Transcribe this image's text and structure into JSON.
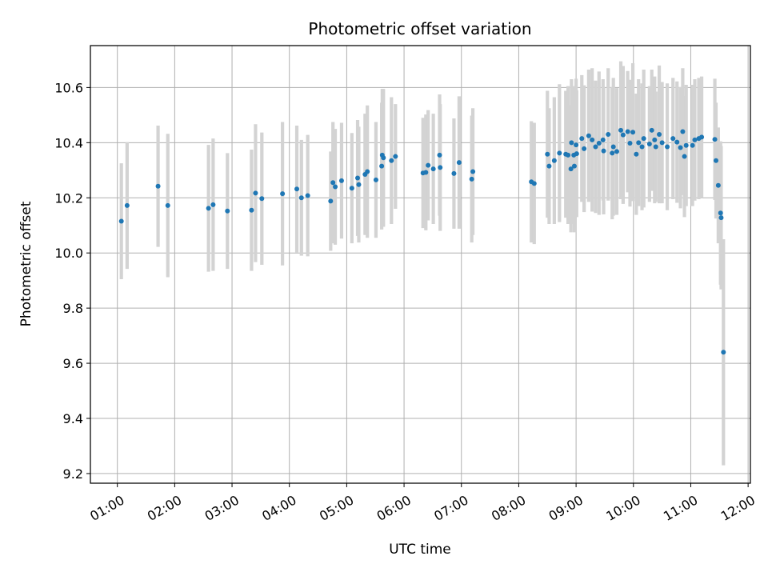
{
  "chart_data": {
    "type": "scatter",
    "title": "Photometric offset variation",
    "xlabel": "UTC time",
    "ylabel": "Photometric offset",
    "x_unit": "hours UTC",
    "xlim": [
      0.53,
      12.04
    ],
    "ylim": [
      9.165,
      10.752
    ],
    "grid": true,
    "x_ticks": [
      {
        "value": 1,
        "label": "01:00"
      },
      {
        "value": 2,
        "label": "02:00"
      },
      {
        "value": 3,
        "label": "03:00"
      },
      {
        "value": 4,
        "label": "04:00"
      },
      {
        "value": 5,
        "label": "05:00"
      },
      {
        "value": 6,
        "label": "06:00"
      },
      {
        "value": 7,
        "label": "07:00"
      },
      {
        "value": 8,
        "label": "08:00"
      },
      {
        "value": 9,
        "label": "09:00"
      },
      {
        "value": 10,
        "label": "10:00"
      },
      {
        "value": 11,
        "label": "11:00"
      },
      {
        "value": 12,
        "label": "12:00"
      }
    ],
    "y_ticks": [
      {
        "value": 9.2,
        "label": "9.2"
      },
      {
        "value": 9.4,
        "label": "9.4"
      },
      {
        "value": 9.6,
        "label": "9.6"
      },
      {
        "value": 9.8,
        "label": "9.8"
      },
      {
        "value": 10.0,
        "label": "10.0"
      },
      {
        "value": 10.2,
        "label": "10.2"
      },
      {
        "value": 10.4,
        "label": "10.4"
      },
      {
        "value": 10.6,
        "label": "10.6"
      }
    ],
    "colors": {
      "point": "#1f77b4",
      "errorbar": "#d3d3d3",
      "grid": "#b0b0b0",
      "axis": "#000000"
    },
    "series": [
      {
        "name": "offset",
        "points": [
          [
            1.07,
            10.115,
            0.21
          ],
          [
            1.17,
            10.172,
            0.23
          ],
          [
            1.71,
            10.242,
            0.22
          ],
          [
            1.88,
            10.172,
            0.26
          ],
          [
            2.59,
            10.162,
            0.23
          ],
          [
            2.67,
            10.175,
            0.24
          ],
          [
            2.92,
            10.152,
            0.21
          ],
          [
            3.34,
            10.155,
            0.22
          ],
          [
            3.41,
            10.217,
            0.25
          ],
          [
            3.52,
            10.197,
            0.24
          ],
          [
            3.88,
            10.215,
            0.26
          ],
          [
            4.13,
            10.232,
            0.23
          ],
          [
            4.21,
            10.2,
            0.21
          ],
          [
            4.32,
            10.208,
            0.22
          ],
          [
            4.72,
            10.188,
            0.18
          ],
          [
            4.76,
            10.255,
            0.22
          ],
          [
            4.8,
            10.24,
            0.21
          ],
          [
            4.91,
            10.262,
            0.21
          ],
          [
            5.09,
            10.235,
            0.2
          ],
          [
            5.19,
            10.272,
            0.21
          ],
          [
            5.21,
            10.248,
            0.21
          ],
          [
            5.32,
            10.285,
            0.22
          ],
          [
            5.36,
            10.295,
            0.24
          ],
          [
            5.51,
            10.265,
            0.21
          ],
          [
            5.61,
            10.315,
            0.23
          ],
          [
            5.62,
            10.355,
            0.24
          ],
          [
            5.64,
            10.345,
            0.25
          ],
          [
            5.78,
            10.335,
            0.23
          ],
          [
            5.85,
            10.35,
            0.19
          ],
          [
            6.33,
            10.29,
            0.2
          ],
          [
            6.38,
            10.292,
            0.21
          ],
          [
            6.42,
            10.318,
            0.2
          ],
          [
            6.51,
            10.305,
            0.2
          ],
          [
            6.62,
            10.355,
            0.22
          ],
          [
            6.63,
            10.31,
            0.23
          ],
          [
            6.87,
            10.288,
            0.2
          ],
          [
            6.96,
            10.328,
            0.24
          ],
          [
            7.18,
            10.268,
            0.23
          ],
          [
            7.2,
            10.295,
            0.23
          ],
          [
            8.22,
            10.258,
            0.22
          ],
          [
            8.27,
            10.252,
            0.22
          ],
          [
            8.5,
            10.358,
            0.23
          ],
          [
            8.53,
            10.315,
            0.21
          ],
          [
            8.62,
            10.335,
            0.23
          ],
          [
            8.71,
            10.362,
            0.25
          ],
          [
            8.82,
            10.358,
            0.23
          ],
          [
            8.86,
            10.355,
            0.25
          ],
          [
            8.91,
            10.305,
            0.23
          ],
          [
            8.92,
            10.4,
            0.23
          ],
          [
            8.96,
            10.355,
            0.25
          ],
          [
            8.97,
            10.315,
            0.24
          ],
          [
            9.0,
            10.392,
            0.24
          ],
          [
            9.01,
            10.36,
            0.23
          ],
          [
            9.1,
            10.415,
            0.23
          ],
          [
            9.14,
            10.378,
            0.23
          ],
          [
            9.22,
            10.425,
            0.24
          ],
          [
            9.28,
            10.41,
            0.26
          ],
          [
            9.34,
            10.385,
            0.24
          ],
          [
            9.4,
            10.398,
            0.26
          ],
          [
            9.47,
            10.41,
            0.22
          ],
          [
            9.48,
            10.37,
            0.23
          ],
          [
            9.56,
            10.43,
            0.24
          ],
          [
            9.63,
            10.362,
            0.24
          ],
          [
            9.65,
            10.385,
            0.25
          ],
          [
            9.71,
            10.368,
            0.23
          ],
          [
            9.78,
            10.445,
            0.25
          ],
          [
            9.82,
            10.428,
            0.25
          ],
          [
            9.9,
            10.44,
            0.22
          ],
          [
            9.94,
            10.398,
            0.23
          ],
          [
            9.99,
            10.438,
            0.25
          ],
          [
            10.05,
            10.358,
            0.22
          ],
          [
            10.09,
            10.4,
            0.23
          ],
          [
            10.15,
            10.385,
            0.23
          ],
          [
            10.18,
            10.415,
            0.25
          ],
          [
            10.28,
            10.395,
            0.21
          ],
          [
            10.32,
            10.445,
            0.22
          ],
          [
            10.37,
            10.41,
            0.23
          ],
          [
            10.39,
            10.385,
            0.2
          ],
          [
            10.45,
            10.43,
            0.25
          ],
          [
            10.5,
            10.4,
            0.22
          ],
          [
            10.59,
            10.385,
            0.23
          ],
          [
            10.69,
            10.415,
            0.22
          ],
          [
            10.76,
            10.402,
            0.22
          ],
          [
            10.82,
            10.382,
            0.22
          ],
          [
            10.86,
            10.44,
            0.23
          ],
          [
            10.89,
            10.35,
            0.22
          ],
          [
            10.92,
            10.39,
            0.22
          ],
          [
            11.03,
            10.39,
            0.22
          ],
          [
            11.07,
            10.41,
            0.22
          ],
          [
            11.14,
            10.415,
            0.22
          ],
          [
            11.19,
            10.42,
            0.22
          ],
          [
            11.42,
            10.412,
            0.22
          ],
          [
            11.44,
            10.335,
            0.21
          ],
          [
            11.48,
            10.245,
            0.21
          ],
          [
            11.52,
            10.145,
            0.26
          ],
          [
            11.53,
            10.128,
            0.26
          ],
          [
            11.57,
            9.64,
            0.41
          ]
        ]
      }
    ]
  }
}
